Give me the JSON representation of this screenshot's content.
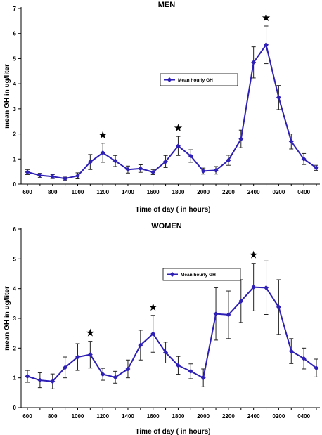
{
  "chart_data": [
    {
      "type": "line",
      "title": "MEN",
      "xlabel": "Time of day ( in hours)",
      "ylabel": "mean GH in ug/liter",
      "ylim": [
        0,
        7
      ],
      "yticks": [
        "0",
        "1",
        "2",
        "3",
        "4",
        "5",
        "6",
        "7"
      ],
      "x_tick_labels": [
        "600",
        "800",
        "1000",
        "1200",
        "1400",
        "1600",
        "1800",
        "2000",
        "2200",
        "2400",
        "0200",
        "0400"
      ],
      "x": [
        "600",
        "700",
        "800",
        "900",
        "1000",
        "1100",
        "1200",
        "1300",
        "1400",
        "1500",
        "1600",
        "1700",
        "1800",
        "1900",
        "2000",
        "2100",
        "2200",
        "2300",
        "2400",
        "0100",
        "0200",
        "0300",
        "0400",
        "0500"
      ],
      "series": [
        {
          "name": "Mean hourly GH",
          "color": "#2e1fb5",
          "values": [
            0.48,
            0.35,
            0.3,
            0.22,
            0.33,
            0.88,
            1.25,
            0.92,
            0.58,
            0.62,
            0.48,
            0.9,
            1.52,
            1.12,
            0.52,
            0.55,
            0.95,
            1.8,
            4.85,
            5.55,
            3.45,
            1.7,
            1.0,
            0.65
          ],
          "error": [
            0.1,
            0.08,
            0.08,
            0.06,
            0.12,
            0.3,
            0.38,
            0.22,
            0.14,
            0.15,
            0.1,
            0.24,
            0.38,
            0.25,
            0.12,
            0.15,
            0.2,
            0.35,
            0.62,
            0.75,
            0.48,
            0.3,
            0.22,
            0.1
          ]
        }
      ],
      "stars_at": [
        "1200",
        "1800",
        "0100"
      ],
      "legend": "center"
    },
    {
      "type": "line",
      "title": "WOMEN",
      "xlabel": "Time of day ( in hours)",
      "ylabel": "mean GH in ug/liter",
      "ylim": [
        0,
        6
      ],
      "yticks": [
        "0",
        "1",
        "2",
        "3",
        "4",
        "5",
        "6"
      ],
      "x_tick_labels": [
        "600",
        "800",
        "1000",
        "1200",
        "1400",
        "1600",
        "1800",
        "2000",
        "2200",
        "2400",
        "0200",
        "0400"
      ],
      "x": [
        "600",
        "700",
        "800",
        "900",
        "1000",
        "1100",
        "1200",
        "1300",
        "1400",
        "1500",
        "1600",
        "1700",
        "1800",
        "1900",
        "2000",
        "2100",
        "2200",
        "2300",
        "2400",
        "0100",
        "0200",
        "0300",
        "0400",
        "0500"
      ],
      "series": [
        {
          "name": "Mean hourly GH",
          "color": "#2e1fb5",
          "values": [
            1.05,
            0.92,
            0.88,
            1.35,
            1.7,
            1.78,
            1.12,
            1.02,
            1.3,
            2.1,
            2.48,
            1.85,
            1.42,
            1.22,
            1.0,
            3.15,
            3.12,
            3.58,
            4.05,
            4.03,
            3.38,
            1.9,
            1.65,
            1.33
          ],
          "error": [
            0.2,
            0.25,
            0.25,
            0.35,
            0.45,
            0.45,
            0.2,
            0.2,
            0.3,
            0.5,
            0.62,
            0.35,
            0.3,
            0.25,
            0.3,
            0.88,
            0.8,
            0.72,
            0.8,
            0.9,
            0.92,
            0.42,
            0.35,
            0.3
          ]
        }
      ],
      "stars_at": [
        "1100",
        "1600",
        "2400"
      ],
      "legend": "upper-center"
    }
  ]
}
